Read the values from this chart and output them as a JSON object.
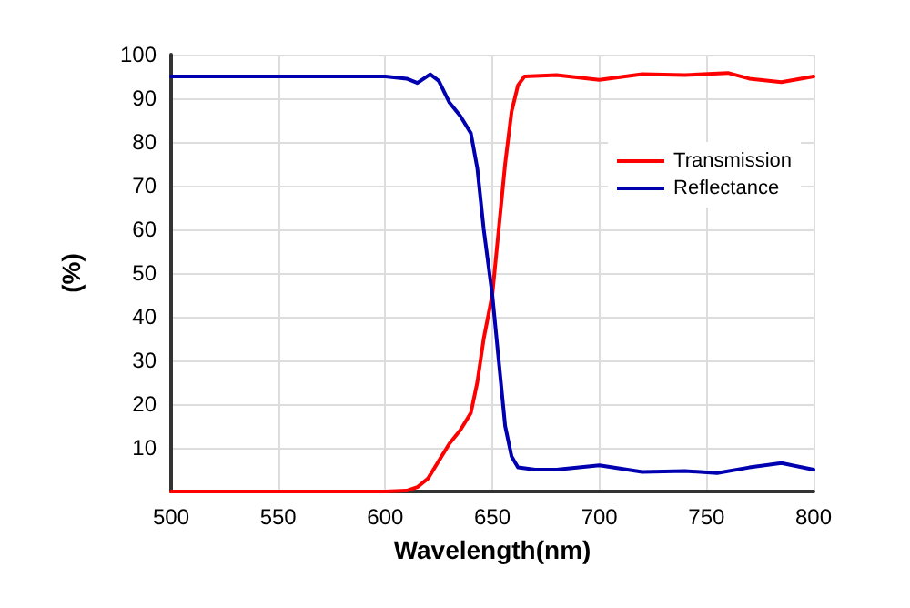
{
  "chart_data": {
    "type": "line",
    "xlabel": "Wavelength(nm)",
    "ylabel": "(%)",
    "xlim": [
      500,
      800
    ],
    "xticks": [
      500,
      550,
      600,
      650,
      700,
      750,
      800
    ],
    "ylim": [
      0,
      100
    ],
    "yticks": [
      {
        "value": 0,
        "label": null
      },
      10,
      20,
      30,
      40,
      50,
      60,
      70,
      80,
      90,
      100
    ],
    "grid": true,
    "legend": "top right",
    "marker": "none",
    "line_style": "solid",
    "series": [
      {
        "name": "Transmission",
        "color": "#ff0000",
        "x": [
          500,
          550,
          600,
          610,
          615,
          620,
          625,
          630,
          635,
          640,
          643,
          646,
          650,
          653,
          656,
          659,
          662,
          665,
          680,
          700,
          720,
          740,
          760,
          770,
          785,
          800
        ],
        "values": [
          0,
          0,
          0,
          0.2,
          1,
          3,
          7,
          11,
          14,
          18,
          25,
          35,
          45,
          60,
          75,
          87,
          93,
          95,
          95.3,
          94.2,
          95.5,
          95.3,
          95.8,
          94.5,
          93.7,
          95
        ]
      },
      {
        "name": "Reflectance",
        "color": "#0000b0",
        "x": [
          500,
          550,
          600,
          610,
          615,
          618,
          621,
          625,
          630,
          635,
          640,
          643,
          646,
          650,
          653,
          656,
          659,
          662,
          670,
          680,
          700,
          720,
          740,
          755,
          770,
          785,
          800
        ],
        "values": [
          95,
          95,
          95,
          94.5,
          93.5,
          94.5,
          95.5,
          94,
          89,
          86,
          82,
          74,
          60,
          45,
          30,
          15,
          8,
          5.5,
          5,
          5,
          6,
          4.5,
          4.7,
          4.2,
          5.5,
          6.5,
          5
        ]
      }
    ]
  }
}
